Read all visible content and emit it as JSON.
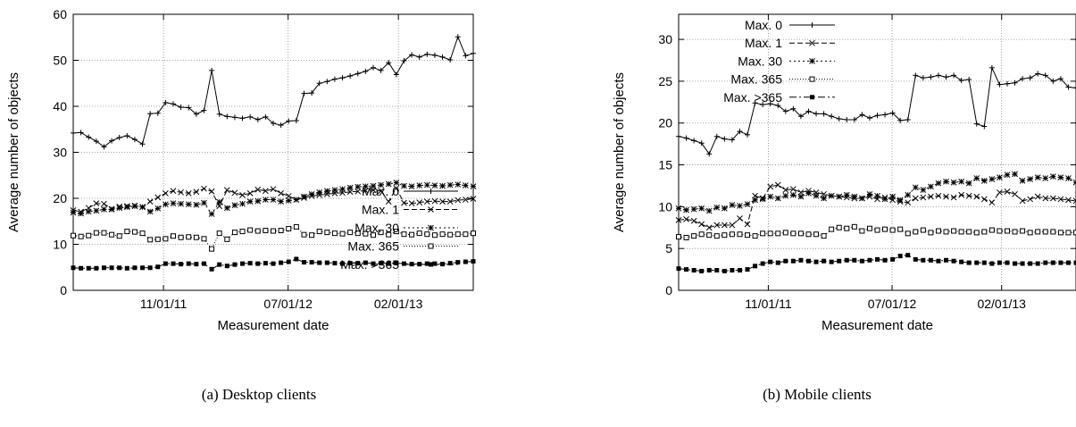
{
  "captions": {
    "a": "(a) Desktop clients",
    "b": "(b) Mobile clients"
  },
  "chart_data": [
    {
      "type": "line",
      "title": "",
      "xlabel": "Measurement date",
      "ylabel": "Average number of objects",
      "xticks": [
        "11/01/11",
        "07/01/12",
        "02/01/13"
      ],
      "ylim": [
        0,
        60
      ],
      "yticks": [
        0,
        10,
        20,
        30,
        40,
        50,
        60
      ],
      "grid": true,
      "legend_position": "center-right",
      "x_dates": [
        "2011-05-09",
        "2011-05-24",
        "2011-06-08",
        "2011-06-23",
        "2011-07-08",
        "2011-07-23",
        "2011-08-07",
        "2011-08-22",
        "2011-09-06",
        "2011-09-21",
        "2011-10-06",
        "2011-10-21",
        "2011-11-05",
        "2011-11-20",
        "2011-12-05",
        "2011-12-20",
        "2012-01-04",
        "2012-01-19",
        "2012-02-03",
        "2012-02-18",
        "2012-03-04",
        "2012-03-19",
        "2012-04-03",
        "2012-04-18",
        "2012-05-03",
        "2012-05-18",
        "2012-06-02",
        "2012-06-17",
        "2012-07-02",
        "2012-07-17",
        "2012-08-01",
        "2012-08-16",
        "2012-08-31",
        "2012-09-15",
        "2012-09-30",
        "2012-10-15",
        "2012-10-30",
        "2012-11-14",
        "2012-11-29",
        "2012-12-14",
        "2012-12-29",
        "2013-01-13",
        "2013-01-28",
        "2013-02-12",
        "2013-02-27",
        "2013-03-14",
        "2013-03-29",
        "2013-04-13",
        "2013-04-28",
        "2013-05-13",
        "2013-05-28",
        "2013-06-12",
        "2013-06-27"
      ],
      "series": [
        {
          "name": "Max. 0",
          "marker": "plus",
          "dash": "",
          "values": [
            34.2,
            34.3,
            33.3,
            32.4,
            31.2,
            32.5,
            33.2,
            33.6,
            32.8,
            31.8,
            38.4,
            38.5,
            40.8,
            40.5,
            39.8,
            39.7,
            38.3,
            39.1,
            47.8,
            38.3,
            37.8,
            37.6,
            37.4,
            37.7,
            37.1,
            37.7,
            36.3,
            35.9,
            36.8,
            36.9,
            42.8,
            42.9,
            45.0,
            45.4,
            45.9,
            46.2,
            46.6,
            47.1,
            47.6,
            48.4,
            47.8,
            49.5,
            46.9,
            49.9,
            51.2,
            50.7,
            51.3,
            51.1,
            50.7,
            50.1,
            55.1,
            51.0,
            51.5
          ]
        },
        {
          "name": "Max. 1",
          "marker": "x",
          "dash": "6,3",
          "values": [
            17.4,
            17.1,
            17.9,
            18.9,
            18.8,
            17.7,
            18.2,
            18.3,
            18.4,
            18.1,
            19.3,
            20.2,
            21.1,
            21.6,
            21.3,
            21.1,
            21.4,
            22.1,
            21.5,
            18.3,
            21.8,
            21.2,
            20.7,
            21.1,
            21.9,
            21.6,
            22.0,
            21.1,
            20.5,
            19.7,
            20.1,
            20.5,
            20.7,
            20.9,
            21.1,
            21.2,
            21.4,
            21.5,
            21.7,
            21.8,
            21.6,
            19.3,
            22.2,
            19.0,
            18.9,
            19.1,
            19.3,
            19.4,
            19.3,
            19.3,
            19.6,
            19.7,
            19.9
          ]
        },
        {
          "name": "Max. 30",
          "marker": "star",
          "dash": "2,3",
          "values": [
            16.9,
            16.7,
            17.1,
            17.3,
            17.6,
            17.6,
            17.9,
            18.1,
            18.3,
            18.1,
            17.1,
            17.8,
            18.7,
            18.9,
            18.8,
            18.7,
            18.6,
            19.0,
            16.6,
            19.2,
            17.9,
            18.5,
            18.8,
            19.3,
            19.4,
            19.7,
            19.7,
            19.3,
            19.5,
            19.7,
            20.4,
            20.9,
            21.3,
            21.6,
            21.8,
            22.0,
            22.3,
            22.5,
            22.6,
            22.7,
            22.9,
            23.1,
            23.4,
            22.7,
            22.6,
            22.8,
            22.9,
            22.8,
            22.7,
            22.9,
            23.0,
            22.8,
            22.6
          ]
        },
        {
          "name": "Max. 365",
          "marker": "square",
          "dash": "1,2",
          "values": [
            11.9,
            11.7,
            11.9,
            12.5,
            12.5,
            12.1,
            11.8,
            12.8,
            12.7,
            12.4,
            11.0,
            11.1,
            11.2,
            11.8,
            11.5,
            11.6,
            11.5,
            11.2,
            9.0,
            12.4,
            11.1,
            12.6,
            12.8,
            13.1,
            12.9,
            13.0,
            12.9,
            13.0,
            13.4,
            13.8,
            12.1,
            12.0,
            12.8,
            12.6,
            12.4,
            12.3,
            12.6,
            12.4,
            12.3,
            12.0,
            12.6,
            12.1,
            12.8,
            12.2,
            12.1,
            12.4,
            12.2,
            12.0,
            12.2,
            12.1,
            12.2,
            12.2,
            12.4
          ]
        },
        {
          "name": "Max. >365",
          "marker": "filled-square",
          "dash": "8,3,2,3",
          "values": [
            4.9,
            4.8,
            4.8,
            4.8,
            4.9,
            4.9,
            4.9,
            4.8,
            4.9,
            4.9,
            4.9,
            5.1,
            5.8,
            5.8,
            5.7,
            5.8,
            5.7,
            5.8,
            4.6,
            5.6,
            5.3,
            5.6,
            5.8,
            5.9,
            5.8,
            5.9,
            5.8,
            6.0,
            6.2,
            6.8,
            6.1,
            6.1,
            6.0,
            6.0,
            5.9,
            5.8,
            5.9,
            5.9,
            6.0,
            5.8,
            5.9,
            5.8,
            5.9,
            5.8,
            5.7,
            5.7,
            5.8,
            5.8,
            5.7,
            5.9,
            6.1,
            6.2,
            6.3
          ]
        }
      ]
    },
    {
      "type": "line",
      "title": "",
      "xlabel": "Measurement date",
      "ylabel": "Average number of objects",
      "xticks": [
        "11/01/11",
        "07/01/12",
        "02/01/13"
      ],
      "ylim": [
        0,
        33
      ],
      "yticks": [
        0,
        5,
        10,
        15,
        20,
        25,
        30
      ],
      "grid": true,
      "legend_position": "top-left",
      "x_dates": [
        "2011-05-09",
        "2011-05-24",
        "2011-06-08",
        "2011-06-23",
        "2011-07-08",
        "2011-07-23",
        "2011-08-07",
        "2011-08-22",
        "2011-09-06",
        "2011-09-21",
        "2011-10-06",
        "2011-10-21",
        "2011-11-05",
        "2011-11-20",
        "2011-12-05",
        "2011-12-20",
        "2012-01-04",
        "2012-01-19",
        "2012-02-03",
        "2012-02-18",
        "2012-03-04",
        "2012-03-19",
        "2012-04-03",
        "2012-04-18",
        "2012-05-03",
        "2012-05-18",
        "2012-06-02",
        "2012-06-17",
        "2012-07-02",
        "2012-07-17",
        "2012-08-01",
        "2012-08-16",
        "2012-08-31",
        "2012-09-15",
        "2012-09-30",
        "2012-10-15",
        "2012-10-30",
        "2012-11-14",
        "2012-11-29",
        "2012-12-14",
        "2012-12-29",
        "2013-01-13",
        "2013-01-28",
        "2013-02-12",
        "2013-02-27",
        "2013-03-14",
        "2013-03-29",
        "2013-04-13",
        "2013-04-28",
        "2013-05-13",
        "2013-05-28",
        "2013-06-12",
        "2013-06-27"
      ],
      "series": [
        {
          "name": "Max. 0",
          "marker": "plus",
          "dash": "",
          "values": [
            18.4,
            18.2,
            17.9,
            17.6,
            16.3,
            18.4,
            18.1,
            18.0,
            19.0,
            18.6,
            22.4,
            22.2,
            22.3,
            22.1,
            21.4,
            21.7,
            20.8,
            21.4,
            21.1,
            21.1,
            20.8,
            20.5,
            20.4,
            20.4,
            21.0,
            20.6,
            20.9,
            21.0,
            21.2,
            20.3,
            20.4,
            25.7,
            25.4,
            25.5,
            25.7,
            25.5,
            25.7,
            25.1,
            25.2,
            19.9,
            19.6,
            26.6,
            24.6,
            24.7,
            24.8,
            25.3,
            25.4,
            25.9,
            25.7,
            25.0,
            25.3,
            24.3,
            24.2
          ]
        },
        {
          "name": "Max. 1",
          "marker": "x",
          "dash": "6,3",
          "values": [
            8.4,
            8.5,
            8.3,
            7.9,
            7.5,
            7.8,
            7.8,
            7.8,
            8.6,
            7.9,
            11.3,
            11.0,
            12.4,
            12.6,
            12.0,
            12.1,
            11.7,
            11.9,
            11.7,
            11.5,
            11.3,
            11.2,
            11.1,
            11.0,
            11.0,
            11.2,
            10.9,
            11.1,
            10.8,
            10.6,
            10.5,
            11.0,
            11.1,
            11.2,
            11.3,
            11.2,
            11.1,
            11.4,
            11.3,
            11.2,
            10.9,
            10.5,
            11.7,
            11.8,
            11.5,
            10.7,
            10.9,
            11.2,
            11.0,
            11.0,
            10.9,
            10.8,
            10.7
          ]
        },
        {
          "name": "Max. 30",
          "marker": "star",
          "dash": "2,3",
          "values": [
            9.8,
            9.6,
            9.7,
            9.8,
            9.5,
            9.9,
            9.8,
            10.2,
            10.1,
            10.3,
            10.8,
            10.9,
            11.2,
            11.0,
            11.3,
            11.4,
            11.2,
            11.6,
            11.3,
            11.0,
            11.3,
            11.2,
            11.4,
            11.2,
            11.0,
            11.5,
            11.3,
            10.9,
            11.2,
            10.8,
            11.4,
            12.3,
            12.0,
            12.4,
            12.8,
            13.0,
            12.9,
            13.0,
            12.8,
            13.4,
            13.1,
            13.3,
            13.5,
            13.8,
            13.9,
            13.1,
            13.3,
            13.5,
            13.4,
            13.6,
            13.5,
            13.4,
            12.9
          ]
        },
        {
          "name": "Max. 365",
          "marker": "square",
          "dash": "1,2",
          "values": [
            6.4,
            6.3,
            6.5,
            6.7,
            6.6,
            6.5,
            6.6,
            6.7,
            6.7,
            6.6,
            6.5,
            6.8,
            6.8,
            6.8,
            6.9,
            6.8,
            6.8,
            6.7,
            6.7,
            6.5,
            7.3,
            7.5,
            7.4,
            7.6,
            7.1,
            7.4,
            7.2,
            7.3,
            7.2,
            7.3,
            6.8,
            7.0,
            7.2,
            6.9,
            7.1,
            7.0,
            7.1,
            7.0,
            7.0,
            6.9,
            7.0,
            7.2,
            7.1,
            7.1,
            7.0,
            7.1,
            6.9,
            7.0,
            7.0,
            7.0,
            6.9,
            6.9,
            6.9
          ]
        },
        {
          "name": "Max. >365",
          "marker": "filled-square",
          "dash": "8,3,2,3",
          "values": [
            2.6,
            2.5,
            2.4,
            2.3,
            2.4,
            2.4,
            2.3,
            2.4,
            2.4,
            2.5,
            2.9,
            3.2,
            3.4,
            3.3,
            3.5,
            3.5,
            3.6,
            3.5,
            3.4,
            3.5,
            3.4,
            3.5,
            3.6,
            3.6,
            3.5,
            3.6,
            3.7,
            3.6,
            3.7,
            4.1,
            4.2,
            3.7,
            3.6,
            3.6,
            3.5,
            3.6,
            3.5,
            3.4,
            3.3,
            3.3,
            3.3,
            3.2,
            3.3,
            3.3,
            3.2,
            3.2,
            3.2,
            3.2,
            3.3,
            3.3,
            3.3,
            3.3,
            3.3
          ]
        }
      ]
    }
  ]
}
